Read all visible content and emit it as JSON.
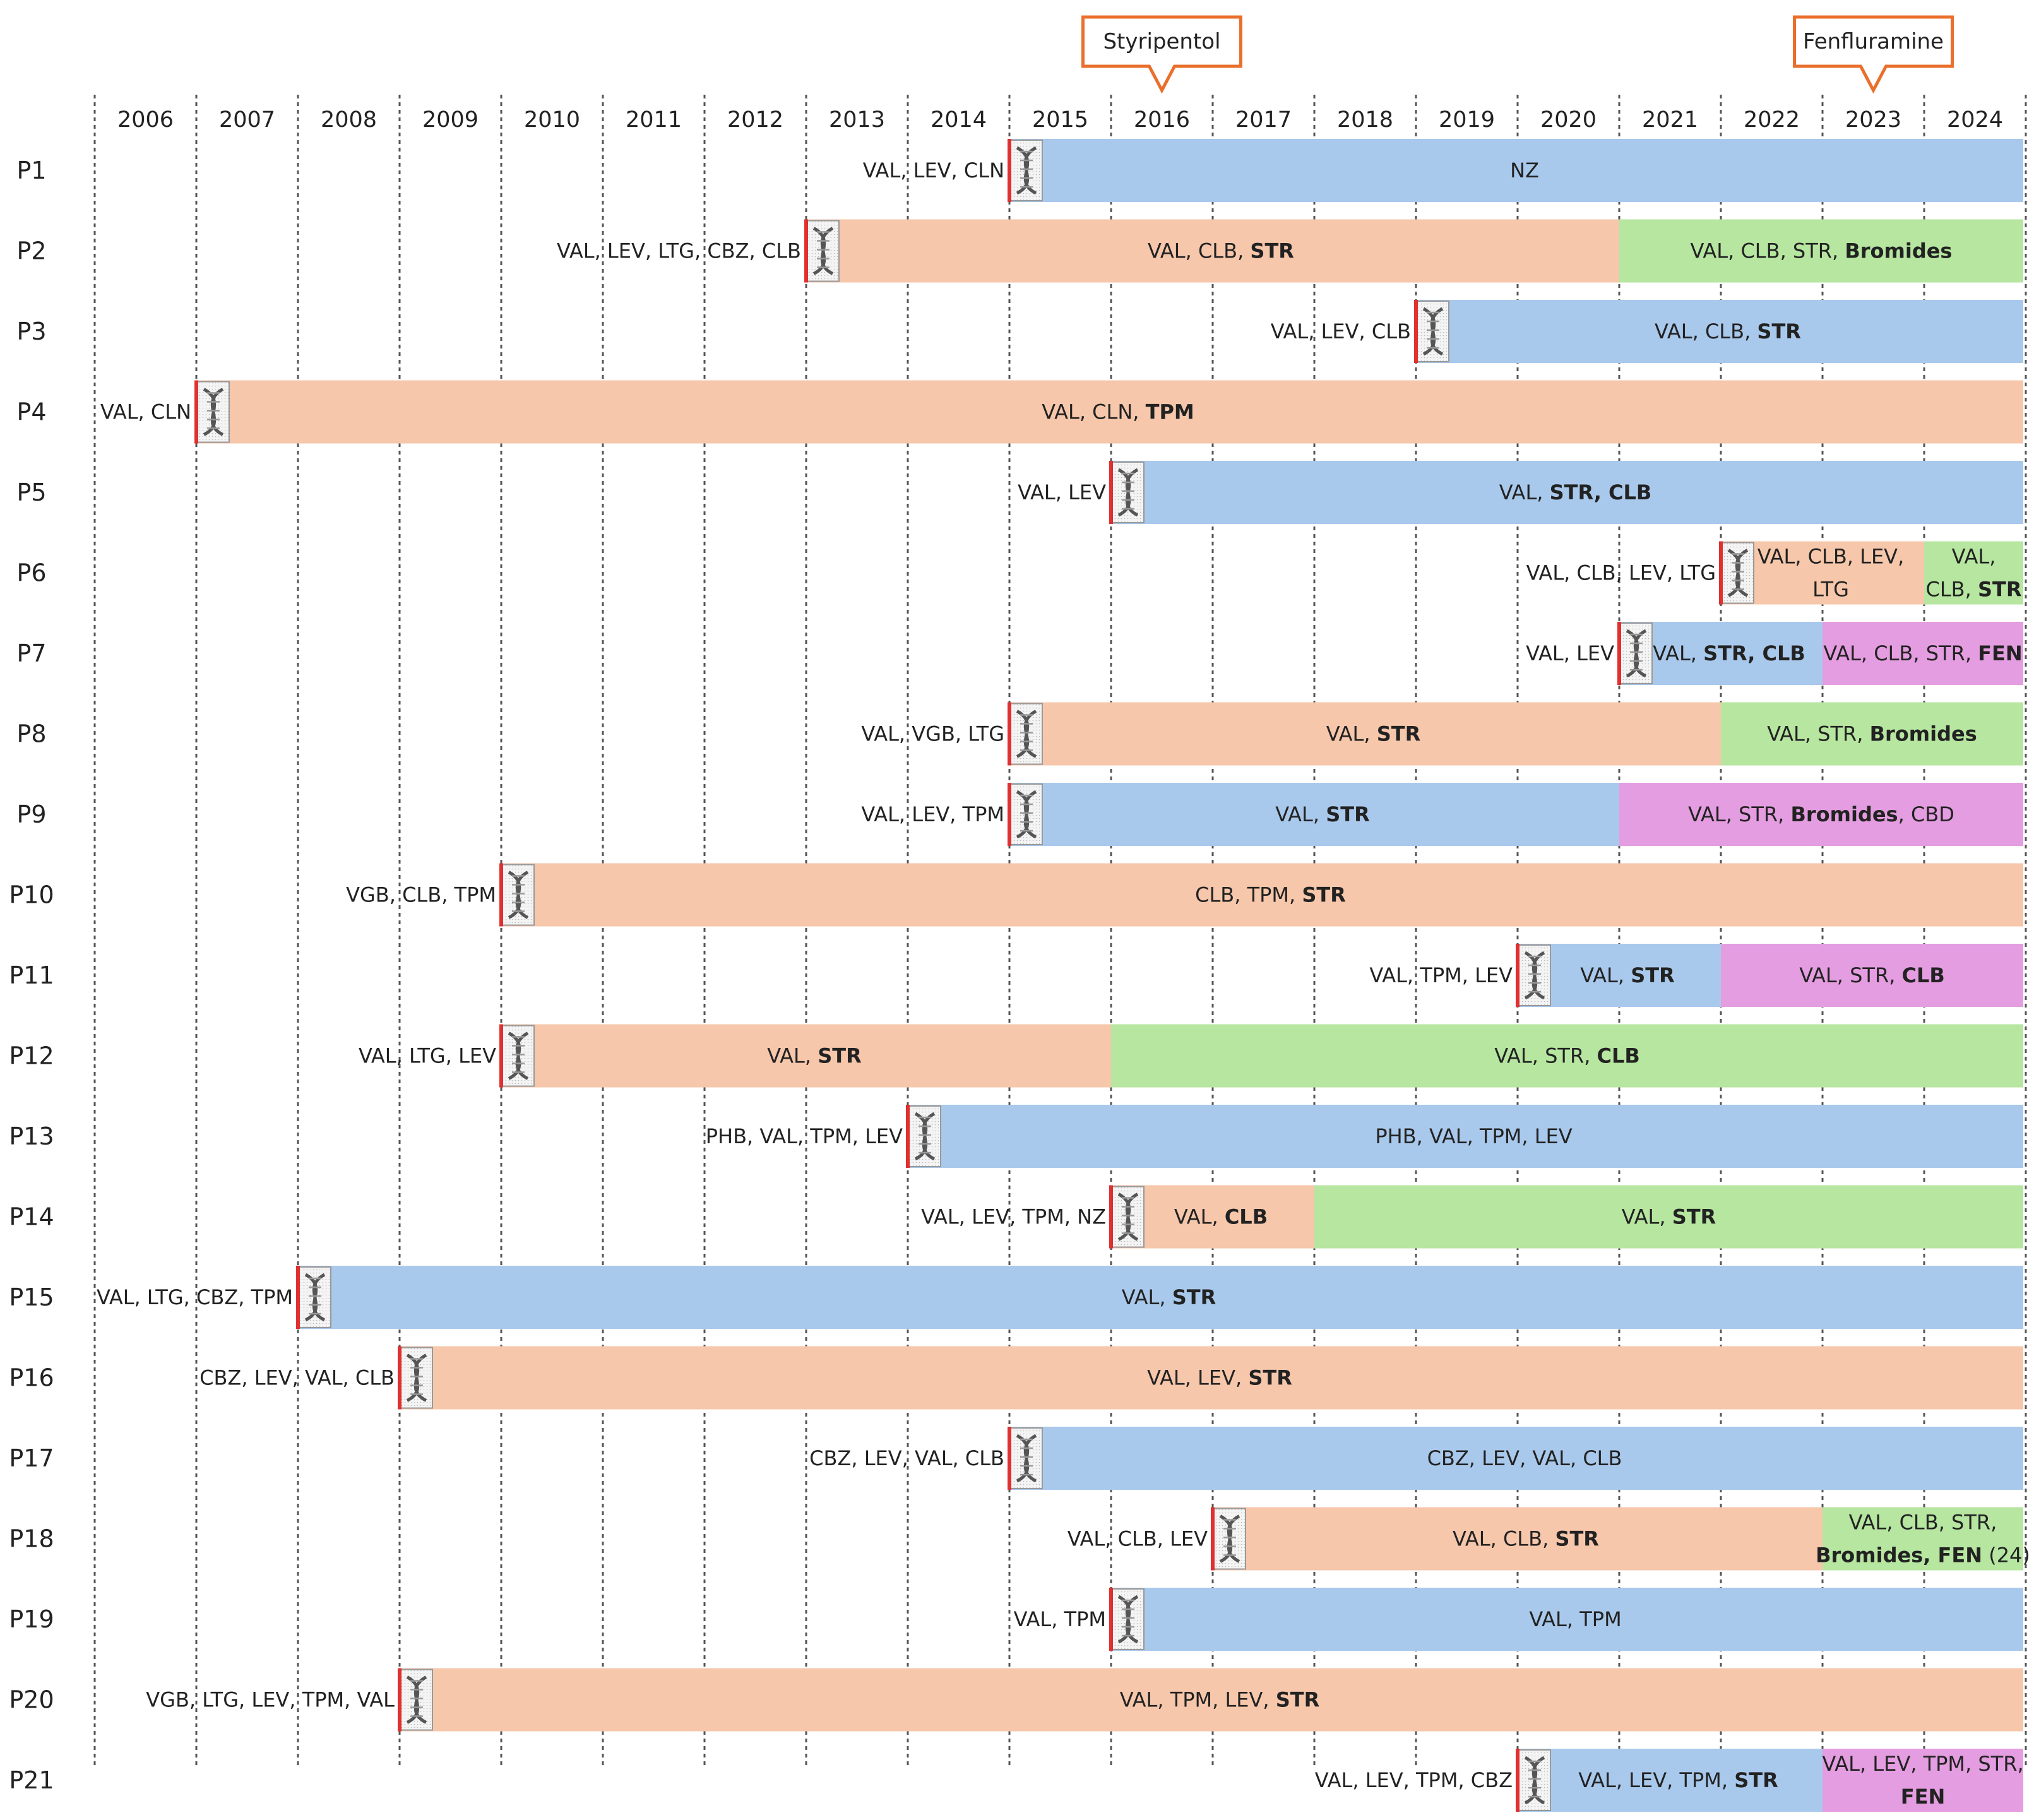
{
  "chart_data": {
    "type": "timeline",
    "title": "",
    "start_year": 2006,
    "end_year": 2024,
    "years": [
      "2006",
      "2007",
      "2008",
      "2009",
      "2010",
      "2011",
      "2012",
      "2013",
      "2014",
      "2015",
      "2016",
      "2017",
      "2018",
      "2019",
      "2020",
      "2021",
      "2022",
      "2023",
      "2024"
    ],
    "colors": {
      "blue": "#a9c9ec",
      "orange": "#f6c7ab",
      "green": "#b6e6a0",
      "pink": "#e49de0",
      "marker_red": "#e03030",
      "callout_orange": "#ea6f2c",
      "grid": "#555555"
    },
    "callouts": [
      {
        "label": "Styripentol",
        "year": 2016
      },
      {
        "label": "Fenfluramine",
        "year": 2023
      }
    ],
    "patients": [
      {
        "id": "P1",
        "diagnosis_year": 2015.0,
        "pre_treatment": "VAL, LEV, CLN",
        "segments": [
          {
            "start": 2015.0,
            "end": 2025.0,
            "color": "blue",
            "label": [
              [
                "NZ",
                false
              ]
            ]
          }
        ]
      },
      {
        "id": "P2",
        "diagnosis_year": 2013.0,
        "pre_treatment": "VAL, LEV, LTG, CBZ, CLB",
        "segments": [
          {
            "start": 2013.0,
            "end": 2021.0,
            "color": "orange",
            "label": [
              [
                "VAL, CLB, ",
                false
              ],
              [
                "STR",
                true
              ]
            ]
          },
          {
            "start": 2021.0,
            "end": 2025.0,
            "color": "green",
            "label": [
              [
                "VAL, CLB, STR, ",
                false
              ],
              [
                "Bromides",
                true
              ]
            ]
          }
        ]
      },
      {
        "id": "P3",
        "diagnosis_year": 2019.0,
        "pre_treatment": "VAL, LEV, CLB",
        "segments": [
          {
            "start": 2019.0,
            "end": 2025.0,
            "color": "blue",
            "label": [
              [
                "VAL, CLB, ",
                false
              ],
              [
                "STR",
                true
              ]
            ]
          }
        ]
      },
      {
        "id": "P4",
        "diagnosis_year": 2007.0,
        "pre_treatment": "VAL, CLN",
        "segments": [
          {
            "start": 2007.0,
            "end": 2025.0,
            "color": "orange",
            "label": [
              [
                "VAL, CLN, ",
                false
              ],
              [
                "TPM",
                true
              ]
            ]
          }
        ]
      },
      {
        "id": "P5",
        "diagnosis_year": 2016.0,
        "pre_treatment": "VAL, LEV",
        "segments": [
          {
            "start": 2016.0,
            "end": 2025.0,
            "color": "blue",
            "label": [
              [
                "VAL, ",
                false
              ],
              [
                "STR, CLB",
                true
              ]
            ]
          }
        ]
      },
      {
        "id": "P6",
        "diagnosis_year": 2022.0,
        "pre_treatment": "VAL, CLB, LEV, LTG",
        "segments": [
          {
            "start": 2022.0,
            "end": 2024.0,
            "color": "orange",
            "lines": [
              [
                [
                  "VAL, CLB, LEV,",
                  false
                ]
              ],
              [
                [
                  "LTG",
                  false
                ]
              ]
            ]
          },
          {
            "start": 2024.0,
            "end": 2025.0,
            "color": "green",
            "lines": [
              [
                [
                  "VAL,",
                  false
                ]
              ],
              [
                [
                  "CLB, ",
                  false
                ],
                [
                  "STR",
                  true
                ]
              ]
            ]
          }
        ]
      },
      {
        "id": "P7",
        "diagnosis_year": 2021.0,
        "pre_treatment": "VAL, LEV",
        "segments": [
          {
            "start": 2021.0,
            "end": 2023.0,
            "color": "blue",
            "label": [
              [
                "VAL, ",
                false
              ],
              [
                "STR, CLB",
                true
              ]
            ]
          },
          {
            "start": 2023.0,
            "end": 2025.0,
            "color": "pink",
            "label": [
              [
                "VAL, CLB, STR, ",
                false
              ],
              [
                "FEN",
                true
              ]
            ]
          }
        ]
      },
      {
        "id": "P8",
        "diagnosis_year": 2015.0,
        "pre_treatment": "VAL, VGB, LTG",
        "segments": [
          {
            "start": 2015.0,
            "end": 2022.0,
            "color": "orange",
            "label": [
              [
                "VAL, ",
                false
              ],
              [
                "STR",
                true
              ]
            ]
          },
          {
            "start": 2022.0,
            "end": 2025.0,
            "color": "green",
            "label": [
              [
                "VAL, STR, ",
                false
              ],
              [
                "Bromides",
                true
              ]
            ]
          }
        ]
      },
      {
        "id": "P9",
        "diagnosis_year": 2015.0,
        "pre_treatment": "VAL, LEV, TPM",
        "segments": [
          {
            "start": 2015.0,
            "end": 2021.0,
            "color": "blue",
            "label": [
              [
                "VAL, ",
                false
              ],
              [
                "STR",
                true
              ]
            ]
          },
          {
            "start": 2021.0,
            "end": 2025.0,
            "color": "pink",
            "label": [
              [
                "VAL, STR, ",
                false
              ],
              [
                "Bromides",
                true
              ],
              [
                ", CBD",
                false
              ]
            ]
          }
        ]
      },
      {
        "id": "P10",
        "diagnosis_year": 2010.0,
        "pre_treatment": "VGB, CLB, TPM",
        "segments": [
          {
            "start": 2010.0,
            "end": 2025.0,
            "color": "orange",
            "label": [
              [
                "CLB, TPM, ",
                false
              ],
              [
                "STR",
                true
              ]
            ]
          }
        ]
      },
      {
        "id": "P11",
        "diagnosis_year": 2020.0,
        "pre_treatment": "VAL, TPM, LEV",
        "segments": [
          {
            "start": 2020.0,
            "end": 2022.0,
            "color": "blue",
            "label": [
              [
                "VAL, ",
                false
              ],
              [
                "STR",
                true
              ]
            ]
          },
          {
            "start": 2022.0,
            "end": 2025.0,
            "color": "pink",
            "label": [
              [
                "VAL, STR, ",
                false
              ],
              [
                "CLB",
                true
              ]
            ]
          }
        ]
      },
      {
        "id": "P12",
        "diagnosis_year": 2010.0,
        "pre_treatment": "VAL, LTG, LEV",
        "segments": [
          {
            "start": 2010.0,
            "end": 2016.0,
            "color": "orange",
            "label": [
              [
                "VAL, ",
                false
              ],
              [
                "STR",
                true
              ]
            ]
          },
          {
            "start": 2016.0,
            "end": 2025.0,
            "color": "green",
            "label": [
              [
                "VAL, STR, ",
                false
              ],
              [
                "CLB",
                true
              ]
            ]
          }
        ]
      },
      {
        "id": "P13",
        "diagnosis_year": 2014.0,
        "pre_treatment": "PHB, VAL, TPM, LEV",
        "segments": [
          {
            "start": 2014.0,
            "end": 2025.0,
            "color": "blue",
            "label": [
              [
                "PHB, VAL, TPM, LEV",
                false
              ]
            ]
          }
        ]
      },
      {
        "id": "P14",
        "diagnosis_year": 2016.0,
        "pre_treatment": "VAL, LEV, TPM, NZ",
        "segments": [
          {
            "start": 2016.0,
            "end": 2018.0,
            "color": "orange",
            "label": [
              [
                "VAL, ",
                false
              ],
              [
                "CLB",
                true
              ]
            ]
          },
          {
            "start": 2018.0,
            "end": 2025.0,
            "color": "green",
            "label": [
              [
                "VAL, ",
                false
              ],
              [
                "STR",
                true
              ]
            ]
          }
        ]
      },
      {
        "id": "P15",
        "diagnosis_year": 2008.0,
        "pre_treatment": "VAL, LTG, CBZ, TPM",
        "segments": [
          {
            "start": 2008.0,
            "end": 2025.0,
            "color": "blue",
            "label": [
              [
                "VAL, ",
                false
              ],
              [
                "STR",
                true
              ]
            ]
          }
        ]
      },
      {
        "id": "P16",
        "diagnosis_year": 2009.0,
        "pre_treatment": "CBZ, LEV, VAL, CLB",
        "segments": [
          {
            "start": 2009.0,
            "end": 2025.0,
            "color": "orange",
            "label": [
              [
                "VAL, LEV, ",
                false
              ],
              [
                "STR",
                true
              ]
            ]
          }
        ]
      },
      {
        "id": "P17",
        "diagnosis_year": 2015.0,
        "pre_treatment": "CBZ, LEV, VAL, CLB",
        "segments": [
          {
            "start": 2015.0,
            "end": 2025.0,
            "color": "blue",
            "label": [
              [
                "CBZ, LEV, VAL, CLB",
                false
              ]
            ]
          }
        ]
      },
      {
        "id": "P18",
        "diagnosis_year": 2017.0,
        "pre_treatment": "VAL, CLB, LEV",
        "segments": [
          {
            "start": 2017.0,
            "end": 2023.0,
            "color": "orange",
            "label": [
              [
                "VAL, CLB, ",
                false
              ],
              [
                "STR",
                true
              ]
            ]
          },
          {
            "start": 2023.0,
            "end": 2025.0,
            "color": "green",
            "lines": [
              [
                [
                  "VAL, CLB, STR,",
                  false
                ]
              ],
              [
                [
                  "Bromides, FEN",
                  true
                ],
                [
                  " (24)",
                  false
                ]
              ]
            ]
          }
        ]
      },
      {
        "id": "P19",
        "diagnosis_year": 2016.0,
        "pre_treatment": "VAL, TPM",
        "segments": [
          {
            "start": 2016.0,
            "end": 2025.0,
            "color": "blue",
            "label": [
              [
                "VAL, TPM",
                false
              ]
            ]
          }
        ]
      },
      {
        "id": "P20",
        "diagnosis_year": 2009.0,
        "pre_treatment": "VGB, LTG, LEV, TPM, VAL",
        "segments": [
          {
            "start": 2009.0,
            "end": 2025.0,
            "color": "orange",
            "label": [
              [
                "VAL, TPM, LEV, ",
                false
              ],
              [
                "STR",
                true
              ]
            ]
          }
        ]
      },
      {
        "id": "P21",
        "diagnosis_year": 2020.0,
        "pre_treatment": "VAL, LEV, TPM, CBZ",
        "segments": [
          {
            "start": 2020.0,
            "end": 2023.0,
            "color": "blue",
            "label": [
              [
                "VAL, LEV, TPM, ",
                false
              ],
              [
                "STR",
                true
              ]
            ]
          },
          {
            "start": 2023.0,
            "end": 2025.0,
            "color": "pink",
            "lines": [
              [
                [
                  "VAL, LEV, TPM, STR,",
                  false
                ]
              ],
              [
                [
                  "FEN",
                  true
                ]
              ]
            ]
          }
        ]
      }
    ]
  }
}
